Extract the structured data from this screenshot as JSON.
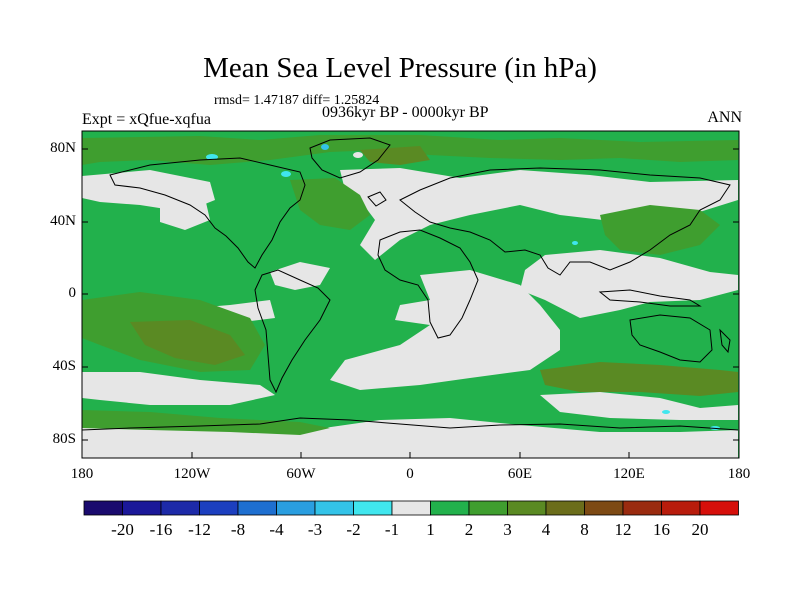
{
  "title": "Mean Sea Level Pressure (in hPa)",
  "stats": "rmsd= 1.47187 diff= 1.25824",
  "expt": "Expt = xQfue-xqfua",
  "period": "0936kyr BP - 0000kyr BP",
  "season": "ANN",
  "map": {
    "lat_ticks": [
      "80N",
      "40N",
      "0",
      "40S",
      "80S"
    ],
    "lon_ticks": [
      "180",
      "120W",
      "60W",
      "0",
      "60E",
      "120E",
      "180"
    ],
    "projection": "cylindrical equidistant",
    "extent": {
      "lon": [
        -180,
        180
      ],
      "lat": [
        -90,
        90
      ]
    }
  },
  "colorbar": {
    "labels": [
      "-20",
      "-16",
      "-12",
      "-8",
      "-4",
      "-3",
      "-2",
      "-1",
      "1",
      "2",
      "3",
      "4",
      "8",
      "12",
      "16",
      "20"
    ],
    "colors": [
      "#1a0a6e",
      "#1b1899",
      "#1d2aa8",
      "#1c3fbf",
      "#1e6fd0",
      "#2a9ee0",
      "#33c3e8",
      "#40e6ee",
      "#e6e6e6",
      "#22b14c",
      "#3f9e2f",
      "#5a8a23",
      "#6b6d1b",
      "#7d4a14",
      "#9a2b0f",
      "#b81c0c",
      "#d60f0a"
    ]
  },
  "colors": {
    "land_outline": "#000000",
    "base_green": "#22b14c",
    "neutral": "#e6e6e6",
    "olive": "#3f9e2f",
    "brown": "#5a8a23"
  }
}
